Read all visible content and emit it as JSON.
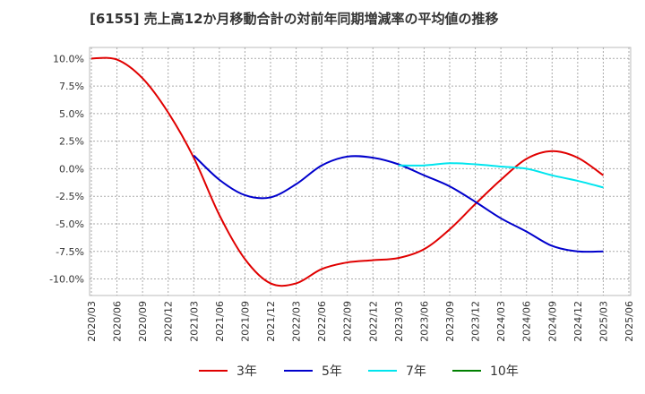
{
  "chart_data": {
    "type": "line",
    "title": "[6155]  売上高12か月移動合計の対前年同期増減率の平均値の推移",
    "xlabel": "",
    "ylabel": "",
    "ylim": [
      -11.5,
      11.0
    ],
    "yticks": [
      10.0,
      7.5,
      5.0,
      2.5,
      0.0,
      -2.5,
      -5.0,
      -7.5,
      -10.0
    ],
    "ytick_labels": [
      "10.0%",
      "7.5%",
      "5.0%",
      "2.5%",
      "0.0%",
      "-2.5%",
      "-5.0%",
      "-7.5%",
      "-10.0%"
    ],
    "x_labels": [
      "2020/03",
      "2020/06",
      "2020/09",
      "2020/12",
      "2021/03",
      "2021/06",
      "2021/09",
      "2021/12",
      "2022/03",
      "2022/06",
      "2022/09",
      "2022/12",
      "2023/03",
      "2023/06",
      "2023/09",
      "2023/12",
      "2024/03",
      "2024/06",
      "2024/09",
      "2024/12",
      "2025/03",
      "2025/06"
    ],
    "grid": true,
    "legend_position": "bottom",
    "series": [
      {
        "name": "3年",
        "color": "#e00000",
        "values": [
          10.0,
          9.9,
          8.2,
          5.1,
          1.0,
          -4.2,
          -8.2,
          -10.4,
          -10.4,
          -9.1,
          -8.5,
          -8.3,
          -8.1,
          -7.3,
          -5.5,
          -3.2,
          -1.0,
          0.9,
          1.6,
          1.0,
          -0.6,
          null
        ]
      },
      {
        "name": "5年",
        "color": "#0000cc",
        "values": [
          null,
          null,
          null,
          null,
          1.2,
          -1.0,
          -2.4,
          -2.6,
          -1.4,
          0.3,
          1.1,
          1.0,
          0.4,
          -0.6,
          -1.6,
          -3.0,
          -4.5,
          -5.7,
          -7.0,
          -7.5,
          -7.5,
          null
        ]
      },
      {
        "name": "7年",
        "color": "#00e5ee",
        "values": [
          null,
          null,
          null,
          null,
          null,
          null,
          null,
          null,
          null,
          null,
          null,
          null,
          0.3,
          0.3,
          0.5,
          0.4,
          0.2,
          0.0,
          -0.6,
          -1.1,
          -1.7,
          null
        ]
      },
      {
        "name": "10年",
        "color": "#008000",
        "values": [
          null,
          null,
          null,
          null,
          null,
          null,
          null,
          null,
          null,
          null,
          null,
          null,
          null,
          null,
          null,
          null,
          null,
          null,
          null,
          null,
          null,
          null
        ]
      }
    ]
  }
}
